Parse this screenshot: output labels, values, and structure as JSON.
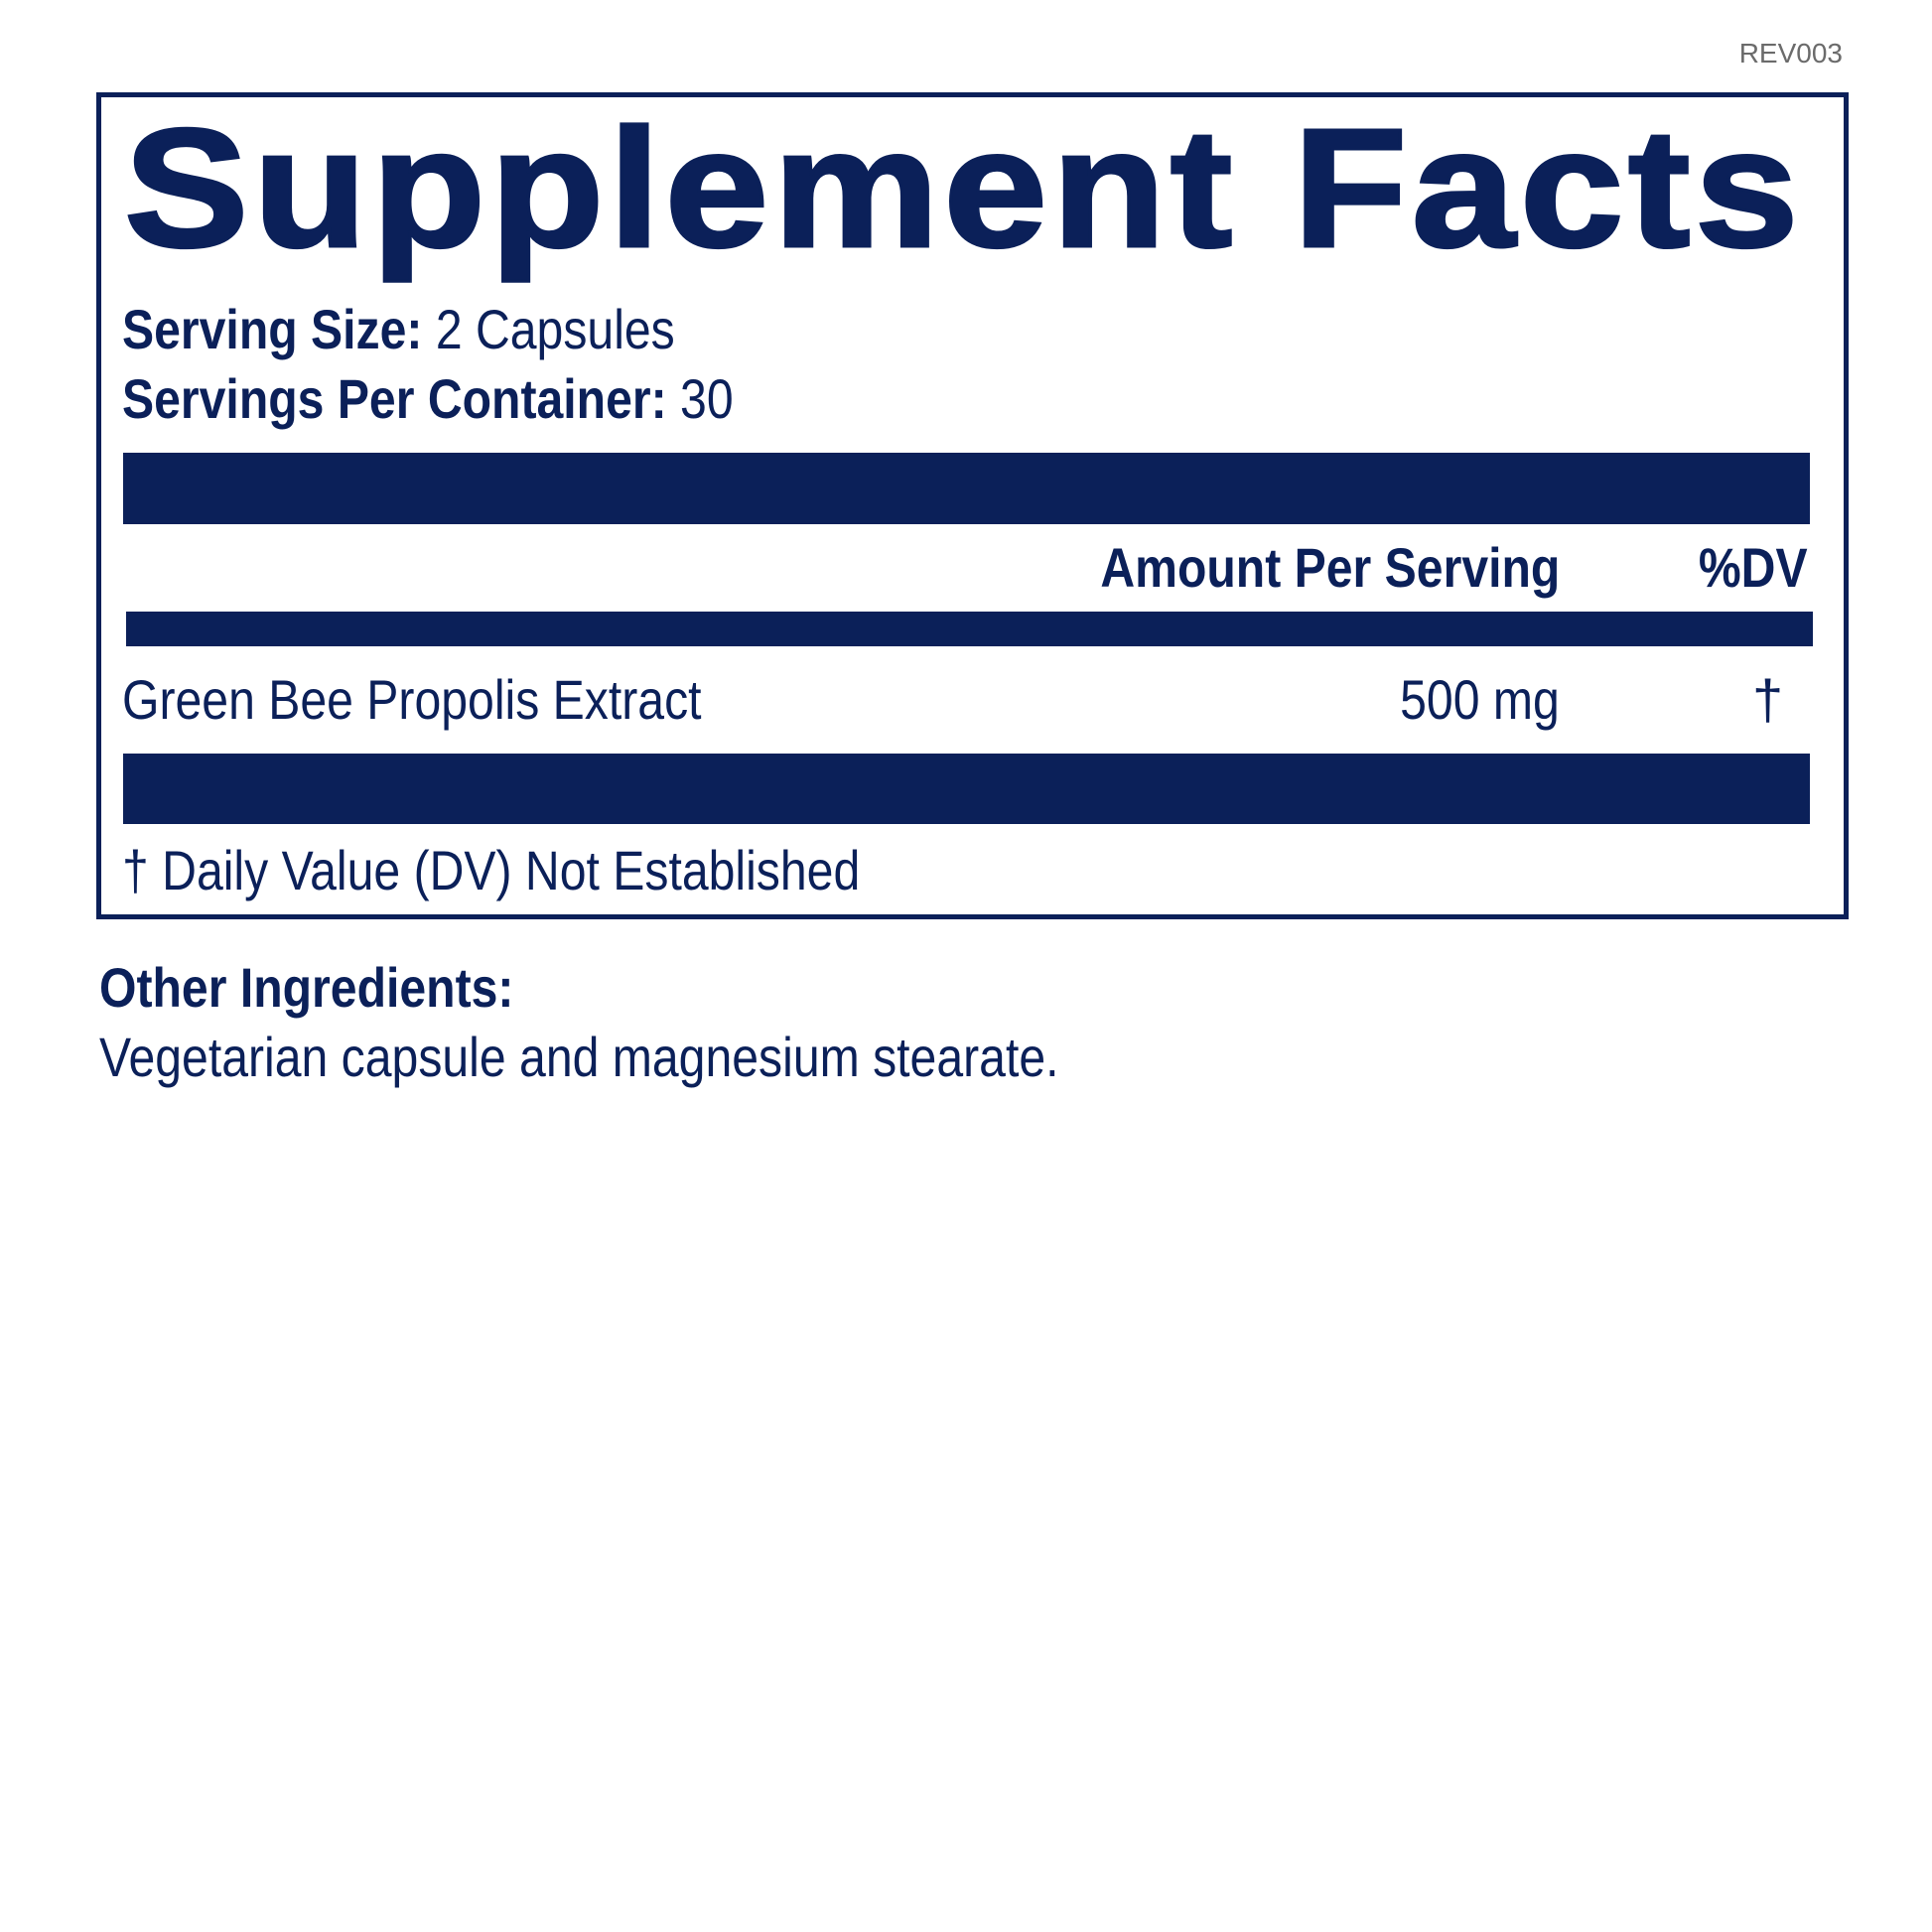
{
  "revision": "REV003",
  "title": "Supplement Facts",
  "serving_size": {
    "label": "Serving Size:",
    "value": "2 Capsules"
  },
  "servings_per_container": {
    "label": "Servings Per Container:",
    "value": "30"
  },
  "table_header": {
    "amount": "Amount Per Serving",
    "dv": "%DV"
  },
  "ingredients": [
    {
      "name": "Green Bee Propolis Extract",
      "amount": "500 mg",
      "dv": "†"
    }
  ],
  "footnote": "† Daily Value (DV) Not Established",
  "other_ingredients": {
    "label": "Other Ingredients:",
    "text": "Vegetarian capsule and magnesium stearate."
  },
  "colors": {
    "navy": "#0b2059",
    "revision_gray": "#6b6b6b"
  }
}
